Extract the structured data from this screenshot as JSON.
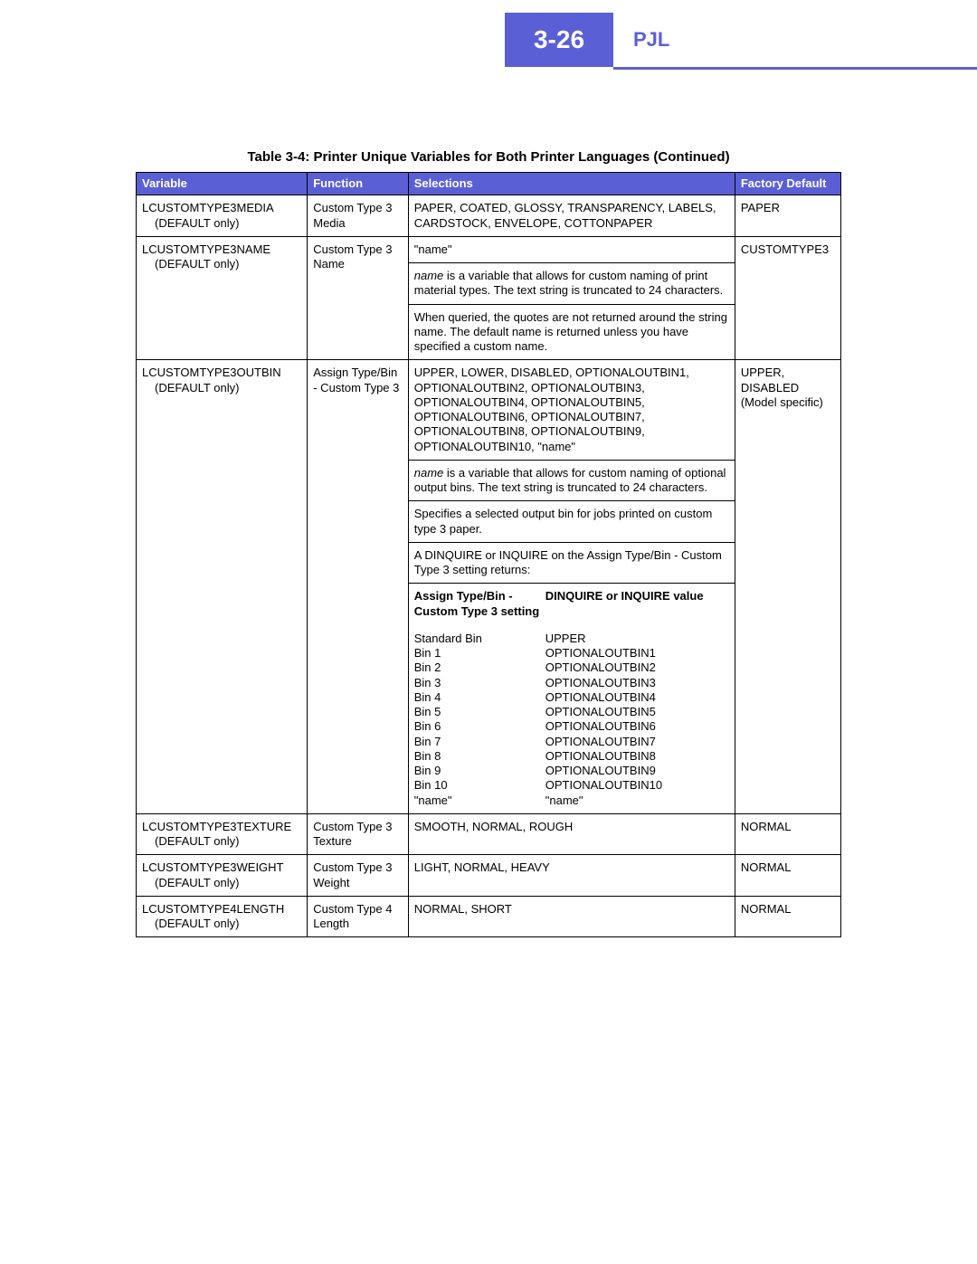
{
  "header": {
    "page_number": "3-26",
    "title": "PJL",
    "accent_color": "#5a5fd6"
  },
  "table_caption": "Table 3-4:  Printer Unique Variables for Both Printer Languages (Continued)",
  "columns": {
    "variable": "Variable",
    "function": "Function",
    "selections": "Selections",
    "factory_default": "Factory Default"
  },
  "rows": {
    "r1": {
      "var_main": "LCUSTOMTYPE3MEDIA",
      "var_sub": "(DEFAULT only)",
      "function": "Custom Type 3 Media",
      "selections": "PAPER, COATED, GLOSSY, TRANSPARENCY, LABELS, CARDSTOCK, ENVELOPE, COTTONPAPER",
      "default": "PAPER"
    },
    "r2": {
      "var_main": "LCUSTOMTYPE3NAME",
      "var_sub": "(DEFAULT only)",
      "function": "Custom Type 3 Name",
      "sel_line1": "\"name\"",
      "sel_para1a": "name",
      "sel_para1b": " is a variable that allows for custom naming of print material types. The text string is truncated to 24 characters.",
      "sel_para2": "When queried, the quotes are not returned around the string name. The default name is returned unless you have specified a custom name.",
      "default": "CUSTOMTYPE3"
    },
    "r3": {
      "var_main": "LCUSTOMTYPE3OUTBIN",
      "var_sub": "(DEFAULT only)",
      "function": "Assign Type/Bin - Custom Type 3",
      "sel_line1": "UPPER, LOWER, DISABLED, OPTIONALOUTBIN1, OPTIONALOUTBIN2, OPTIONALOUTBIN3, OPTIONALOUTBIN4, OPTIONALOUTBIN5, OPTIONALOUTBIN6, OPTIONALOUTBIN7, OPTIONALOUTBIN8, OPTIONALOUTBIN9, OPTIONALOUTBIN10, \"name\"",
      "sel_para1a": "name",
      "sel_para1b": " is a variable that allows for custom naming of optional output bins. The text string is truncated to 24 characters.",
      "sel_para2": "Specifies a selected output bin for jobs printed on custom type 3 paper.",
      "sel_para3": "A DINQUIRE or INQUIRE on the Assign Type/Bin - Custom Type 3 setting returns:",
      "sub_head1": "Assign Type/Bin - Custom Type 3 setting",
      "sub_head2": "DINQUIRE or INQUIRE value",
      "sub_rows": [
        {
          "a": "Standard Bin",
          "b": "UPPER"
        },
        {
          "a": "Bin 1",
          "b": "OPTIONALOUTBIN1"
        },
        {
          "a": "Bin 2",
          "b": "OPTIONALOUTBIN2"
        },
        {
          "a": "Bin 3",
          "b": "OPTIONALOUTBIN3"
        },
        {
          "a": "Bin 4",
          "b": "OPTIONALOUTBIN4"
        },
        {
          "a": "Bin 5",
          "b": "OPTIONALOUTBIN5"
        },
        {
          "a": "Bin 6",
          "b": "OPTIONALOUTBIN6"
        },
        {
          "a": "Bin 7",
          "b": "OPTIONALOUTBIN7"
        },
        {
          "a": "Bin 8",
          "b": "OPTIONALOUTBIN8"
        },
        {
          "a": "Bin 9",
          "b": "OPTIONALOUTBIN9"
        },
        {
          "a": "Bin 10",
          "b": "OPTIONALOUTBIN10"
        },
        {
          "a": "\"name\"",
          "b": "\"name\""
        }
      ],
      "default": "UPPER, DISABLED (Model specific)"
    },
    "r4": {
      "var_main": "LCUSTOMTYPE3TEXTURE",
      "var_sub": "(DEFAULT only)",
      "function": "Custom Type 3 Texture",
      "selections": "SMOOTH, NORMAL, ROUGH",
      "default": "NORMAL"
    },
    "r5": {
      "var_main": "LCUSTOMTYPE3WEIGHT",
      "var_sub": "(DEFAULT only)",
      "function": "Custom Type 3 Weight",
      "selections": "LIGHT, NORMAL, HEAVY",
      "default": "NORMAL"
    },
    "r6": {
      "var_main": "LCUSTOMTYPE4LENGTH",
      "var_sub": "(DEFAULT only)",
      "function": "Custom Type 4 Length",
      "selections": "NORMAL, SHORT",
      "default": "NORMAL"
    }
  }
}
